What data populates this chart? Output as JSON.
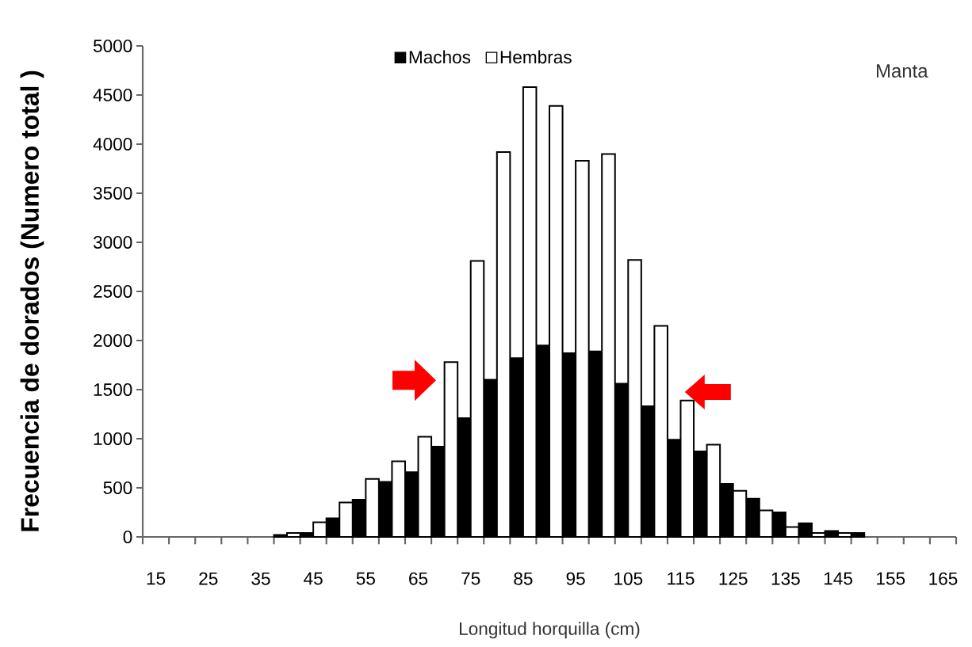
{
  "chart_data": {
    "type": "bar",
    "xlabel": "Longitud horquilla (cm)",
    "ylabel": "Frecuencia de dorados (Numero total )",
    "annotations": [
      "Manta"
    ],
    "categories": [
      "15",
      null,
      "25",
      null,
      "35",
      null,
      "45",
      null,
      "55",
      null,
      "65",
      null,
      "75",
      null,
      "85",
      null,
      "95",
      null,
      "105",
      null,
      "115",
      null,
      "125",
      null,
      "135",
      null,
      "145",
      null,
      "155",
      null,
      "165"
    ],
    "series": [
      {
        "name": "Machos",
        "color": "#000000",
        "values": [
          0,
          0,
          0,
          0,
          0,
          20,
          40,
          190,
          380,
          560,
          660,
          920,
          1210,
          1600,
          1820,
          1950,
          1870,
          1890,
          1560,
          1330,
          990,
          870,
          540,
          390,
          250,
          140,
          60,
          40,
          0,
          0,
          0
        ]
      },
      {
        "name": "Hembras",
        "color": "#ffffff",
        "values": [
          0,
          0,
          0,
          0,
          0,
          40,
          150,
          350,
          590,
          770,
          1020,
          1780,
          2810,
          3920,
          4580,
          4390,
          3830,
          3900,
          2820,
          2150,
          1390,
          940,
          470,
          270,
          100,
          40,
          40,
          0,
          0,
          0,
          0
        ]
      }
    ],
    "ylim": [
      0,
      5000
    ],
    "yticks": [
      0,
      500,
      1000,
      1500,
      2000,
      2500,
      3000,
      3500,
      4000,
      4500,
      5000
    ],
    "legend": "top"
  }
}
